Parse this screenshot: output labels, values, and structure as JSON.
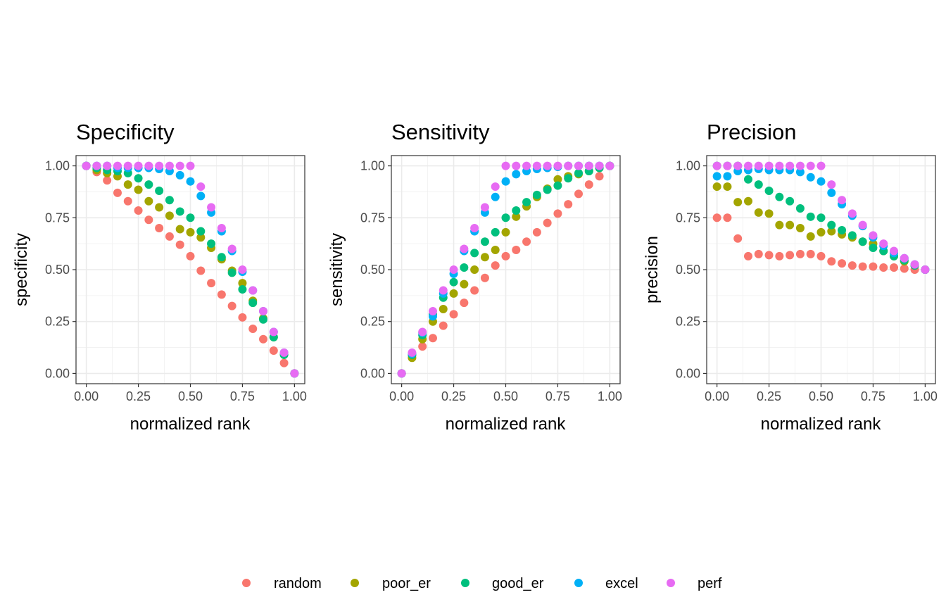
{
  "legend": {
    "position": "bottom",
    "entries": [
      {
        "name": "random",
        "color": "#F8766D"
      },
      {
        "name": "poor_er",
        "color": "#A3A500"
      },
      {
        "name": "good_er",
        "color": "#00BF7D"
      },
      {
        "name": "excel",
        "color": "#00B0F6"
      },
      {
        "name": "perf",
        "color": "#E76BF3"
      }
    ]
  },
  "chart_data": [
    {
      "type": "scatter",
      "title": "Specificity",
      "xlabel": "normalized rank",
      "ylabel": "specificity",
      "xlim": [
        0,
        1
      ],
      "ylim": [
        0,
        1
      ],
      "xticks": [
        "0.00",
        "0.25",
        "0.50",
        "0.75",
        "1.00"
      ],
      "yticks": [
        "0.00",
        "0.25",
        "0.50",
        "0.75",
        "1.00"
      ],
      "grid": true,
      "x": [
        0.0,
        0.05,
        0.1,
        0.15,
        0.2,
        0.25,
        0.3,
        0.35,
        0.4,
        0.45,
        0.5,
        0.55,
        0.6,
        0.65,
        0.7,
        0.75,
        0.8,
        0.85,
        0.9,
        0.95,
        1.0
      ],
      "series": [
        {
          "name": "random",
          "values": [
            1.0,
            0.97,
            0.93,
            0.87,
            0.83,
            0.785,
            0.74,
            0.7,
            0.66,
            0.62,
            0.565,
            0.495,
            0.435,
            0.38,
            0.325,
            0.27,
            0.215,
            0.165,
            0.11,
            0.05,
            0.0
          ]
        },
        {
          "name": "poor_er",
          "values": [
            1.0,
            0.98,
            0.965,
            0.95,
            0.91,
            0.885,
            0.83,
            0.8,
            0.76,
            0.695,
            0.68,
            0.655,
            0.605,
            0.55,
            0.495,
            0.435,
            0.35,
            0.265,
            0.175,
            0.09,
            0.0
          ]
        },
        {
          "name": "good_er",
          "values": [
            1.0,
            0.99,
            0.98,
            0.975,
            0.965,
            0.94,
            0.91,
            0.88,
            0.835,
            0.78,
            0.75,
            0.685,
            0.625,
            0.56,
            0.485,
            0.405,
            0.34,
            0.26,
            0.175,
            0.09,
            0.0
          ]
        },
        {
          "name": "excel",
          "values": [
            1.0,
            1.0,
            1.0,
            0.99,
            0.99,
            0.99,
            0.99,
            0.985,
            0.975,
            0.955,
            0.925,
            0.855,
            0.775,
            0.685,
            0.59,
            0.49,
            0.4,
            0.3,
            0.2,
            0.1,
            0.0
          ]
        },
        {
          "name": "perf",
          "values": [
            1.0,
            1.0,
            1.0,
            1.0,
            1.0,
            1.0,
            1.0,
            1.0,
            1.0,
            1.0,
            1.0,
            0.9,
            0.8,
            0.7,
            0.6,
            0.5,
            0.4,
            0.3,
            0.2,
            0.1,
            0.0
          ]
        }
      ]
    },
    {
      "type": "scatter",
      "title": "Sensitivity",
      "xlabel": "normalized rank",
      "ylabel": "sensitivity",
      "xlim": [
        0,
        1
      ],
      "ylim": [
        0,
        1
      ],
      "xticks": [
        "0.00",
        "0.25",
        "0.50",
        "0.75",
        "1.00"
      ],
      "yticks": [
        "0.00",
        "0.25",
        "0.50",
        "0.75",
        "1.00"
      ],
      "grid": true,
      "x": [
        0.0,
        0.05,
        0.1,
        0.15,
        0.2,
        0.25,
        0.3,
        0.35,
        0.4,
        0.45,
        0.5,
        0.55,
        0.6,
        0.65,
        0.7,
        0.75,
        0.8,
        0.85,
        0.9,
        0.95,
        1.0
      ],
      "series": [
        {
          "name": "random",
          "values": [
            0.0,
            0.085,
            0.13,
            0.17,
            0.23,
            0.285,
            0.34,
            0.4,
            0.46,
            0.52,
            0.565,
            0.595,
            0.635,
            0.68,
            0.725,
            0.77,
            0.815,
            0.865,
            0.91,
            0.95,
            1.0
          ]
        },
        {
          "name": "poor_er",
          "values": [
            0.0,
            0.075,
            0.165,
            0.25,
            0.31,
            0.385,
            0.43,
            0.5,
            0.56,
            0.595,
            0.68,
            0.755,
            0.805,
            0.85,
            0.89,
            0.935,
            0.95,
            0.96,
            0.975,
            0.99,
            1.0
          ]
        },
        {
          "name": "good_er",
          "values": [
            0.0,
            0.09,
            0.185,
            0.285,
            0.365,
            0.44,
            0.51,
            0.58,
            0.635,
            0.68,
            0.75,
            0.785,
            0.825,
            0.86,
            0.885,
            0.905,
            0.94,
            0.965,
            0.975,
            0.99,
            1.0
          ]
        },
        {
          "name": "excel",
          "values": [
            0.0,
            0.095,
            0.195,
            0.275,
            0.385,
            0.48,
            0.59,
            0.685,
            0.775,
            0.85,
            0.925,
            0.96,
            0.975,
            0.985,
            0.99,
            0.995,
            1.0,
            1.0,
            1.0,
            1.0,
            1.0
          ]
        },
        {
          "name": "perf",
          "values": [
            0.0,
            0.1,
            0.2,
            0.3,
            0.4,
            0.5,
            0.6,
            0.7,
            0.8,
            0.9,
            1.0,
            1.0,
            1.0,
            1.0,
            1.0,
            1.0,
            1.0,
            1.0,
            1.0,
            1.0,
            1.0
          ]
        }
      ]
    },
    {
      "type": "scatter",
      "title": "Precision",
      "xlabel": "normalized rank",
      "ylabel": "precision",
      "xlim": [
        0,
        1
      ],
      "ylim": [
        0,
        1
      ],
      "xticks": [
        "0.00",
        "0.25",
        "0.50",
        "0.75",
        "1.00"
      ],
      "yticks": [
        "0.00",
        "0.25",
        "0.50",
        "0.75",
        "1.00"
      ],
      "grid": true,
      "x": [
        0.0,
        0.05,
        0.1,
        0.15,
        0.2,
        0.25,
        0.3,
        0.35,
        0.4,
        0.45,
        0.5,
        0.55,
        0.6,
        0.65,
        0.7,
        0.75,
        0.8,
        0.85,
        0.9,
        0.95,
        1.0
      ],
      "series": [
        {
          "name": "random",
          "values": [
            0.75,
            0.75,
            0.65,
            0.565,
            0.575,
            0.57,
            0.565,
            0.57,
            0.575,
            0.575,
            0.565,
            0.54,
            0.53,
            0.52,
            0.515,
            0.515,
            0.51,
            0.51,
            0.505,
            0.5,
            0.5
          ]
        },
        {
          "name": "poor_er",
          "values": [
            0.9,
            0.9,
            0.825,
            0.83,
            0.775,
            0.77,
            0.715,
            0.715,
            0.7,
            0.66,
            0.68,
            0.685,
            0.67,
            0.655,
            0.635,
            0.625,
            0.59,
            0.565,
            0.54,
            0.52,
            0.5
          ]
        },
        {
          "name": "good_er",
          "values": [
            1.0,
            1.0,
            1.0,
            0.935,
            0.91,
            0.88,
            0.85,
            0.83,
            0.795,
            0.755,
            0.75,
            0.715,
            0.69,
            0.665,
            0.635,
            0.605,
            0.59,
            0.565,
            0.545,
            0.52,
            0.5
          ]
        },
        {
          "name": "excel",
          "values": [
            0.95,
            0.95,
            0.975,
            0.98,
            0.985,
            0.98,
            0.98,
            0.98,
            0.97,
            0.945,
            0.925,
            0.87,
            0.815,
            0.76,
            0.71,
            0.655,
            0.615,
            0.58,
            0.555,
            0.525,
            0.5
          ]
        },
        {
          "name": "perf",
          "values": [
            1.0,
            1.0,
            1.0,
            1.0,
            1.0,
            1.0,
            1.0,
            1.0,
            1.0,
            1.0,
            1.0,
            0.91,
            0.835,
            0.77,
            0.715,
            0.665,
            0.625,
            0.59,
            0.555,
            0.525,
            0.5
          ]
        }
      ]
    }
  ]
}
